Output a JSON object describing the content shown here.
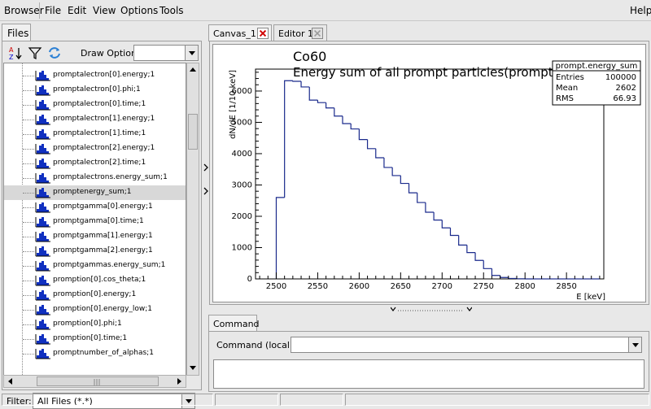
{
  "menubar": {
    "items": [
      {
        "name": "menu-browser",
        "label": "Browser"
      },
      {
        "name": "menu-file",
        "label": "File"
      },
      {
        "name": "menu-edit",
        "label": "Edit"
      },
      {
        "name": "menu-view",
        "label": "View"
      },
      {
        "name": "menu-options",
        "label": "Options"
      },
      {
        "name": "menu-tools",
        "label": "Tools"
      }
    ],
    "help": "Help"
  },
  "left": {
    "tab": "Files",
    "draw_option_label": "Draw Option:",
    "draw_option_value": "",
    "tree_items": [
      "promptalectron[0].energy;1",
      "promptalectron[0].phi;1",
      "promptalectron[0].time;1",
      "promptalectron[1].energy;1",
      "promptalectron[1].time;1",
      "promptalectron[2].energy;1",
      "promptalectron[2].time;1",
      "promptalectrons.energy_sum;1",
      "promptenergy_sum;1",
      "promptgamma[0].energy;1",
      "promptgamma[0].time;1",
      "promptgamma[1].energy;1",
      "promptgamma[2].energy;1",
      "promptgammas.energy_sum;1",
      "promption[0].cos_theta;1",
      "promption[0].energy;1",
      "promption[0].energy_low;1",
      "promption[0].phi;1",
      "promption[0].time;1",
      "promptnumber_of_alphas;1"
    ],
    "selected_index": 8,
    "filter_label": "Filter:",
    "filter_value": "All Files (*.*)"
  },
  "tabs": [
    {
      "label": "Canvas_1",
      "active": true
    },
    {
      "label": "Editor 1",
      "active": false
    }
  ],
  "canvas": {
    "title_line1": "Co60",
    "title_line2": "Energy sum of all prompt particles(prompt)",
    "stats": {
      "name": "prompt.energy_sum",
      "rows": [
        {
          "label": "Entries",
          "value": "100000"
        },
        {
          "label": "Mean",
          "value": "2602"
        },
        {
          "label": "RMS",
          "value": "66.93"
        }
      ]
    },
    "chart_data": {
      "type": "bar",
      "title": "Energy sum of all prompt particles(prompt)",
      "xlabel": "E [keV]",
      "ylabel": "dN/dE [1/10 keV]",
      "xlim": [
        2475,
        2895
      ],
      "ylim": [
        0,
        6700
      ],
      "x_ticks": [
        2500,
        2550,
        2600,
        2650,
        2700,
        2750,
        2800,
        2850
      ],
      "y_ticks": [
        0,
        1000,
        2000,
        3000,
        4000,
        5000,
        6000
      ],
      "bin_width": 10,
      "bin_edges_start": 2500,
      "values": [
        2600,
        6330,
        6310,
        6130,
        5710,
        5630,
        5460,
        5200,
        4960,
        4790,
        4450,
        4160,
        3870,
        3560,
        3300,
        3050,
        2750,
        2440,
        2130,
        1880,
        1630,
        1390,
        1080,
        840,
        590,
        330,
        110,
        45,
        15,
        5,
        0,
        0,
        0,
        0,
        0,
        0,
        0,
        0,
        0
      ]
    }
  },
  "command": {
    "tab": "Command",
    "label": "Command (local):",
    "value": ""
  }
}
